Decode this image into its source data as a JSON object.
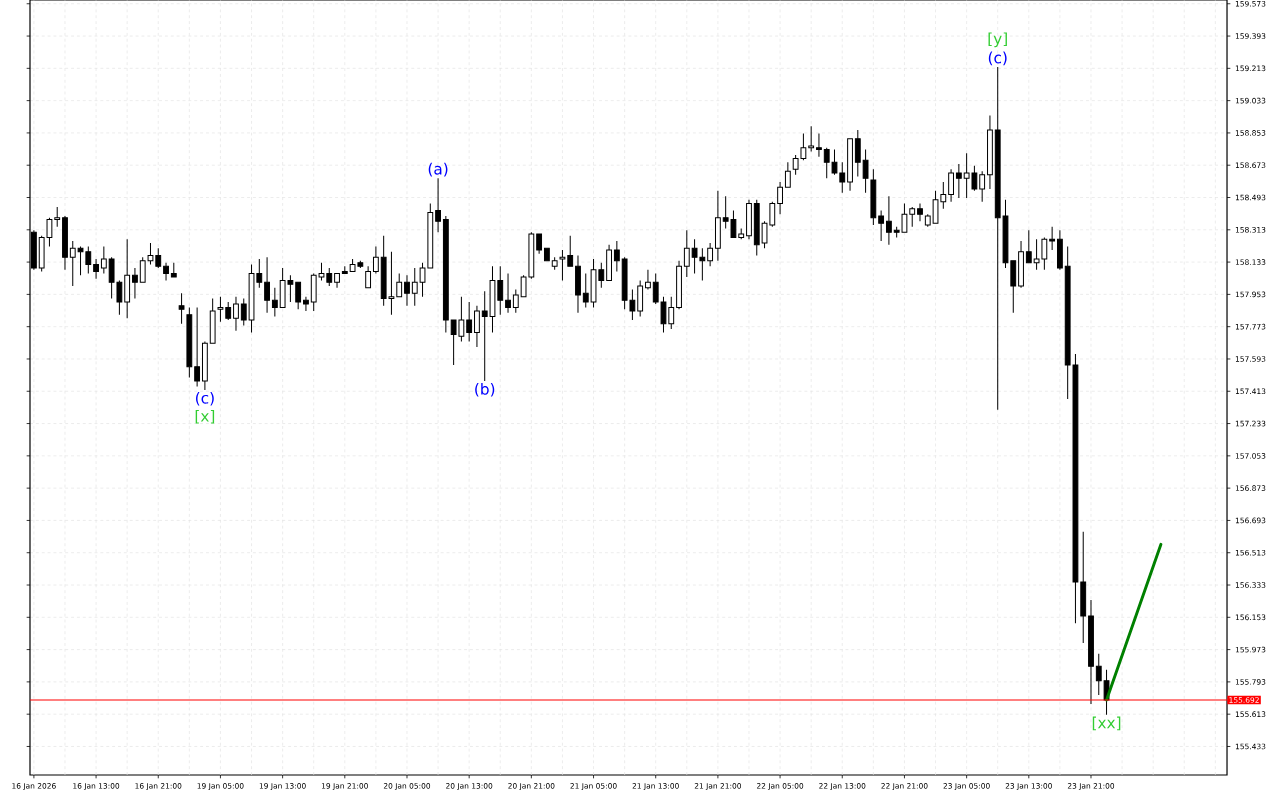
{
  "chart_data": {
    "type": "candlestick",
    "categories": [
      "16 Jan 2026",
      null,
      null,
      null,
      null,
      null,
      null,
      null,
      "16 Jan 13:00",
      null,
      null,
      null,
      null,
      null,
      null,
      null,
      "16 Jan 21:00",
      null,
      null,
      null,
      null,
      null,
      null,
      null,
      "19 Jan 05:00",
      null,
      null,
      null,
      null,
      null,
      null,
      null,
      "19 Jan 13:00",
      null,
      null,
      null,
      null,
      null,
      null,
      null,
      "19 Jan 21:00",
      null,
      null,
      null,
      null,
      null,
      null,
      null,
      "20 Jan 05:00",
      null,
      null,
      null,
      null,
      null,
      null,
      null,
      "20 Jan 13:00",
      null,
      null,
      null,
      null,
      null,
      null,
      null,
      "20 Jan 21:00",
      null,
      null,
      null,
      null,
      null,
      null,
      null,
      "21 Jan 05:00",
      null,
      null,
      null,
      null,
      null,
      null,
      null,
      "21 Jan 13:00",
      null,
      null,
      null,
      null,
      null,
      null,
      null,
      "21 Jan 21:00",
      null,
      null,
      null,
      null,
      null,
      null,
      null,
      "22 Jan 05:00",
      null,
      null,
      null,
      null,
      null,
      null,
      null,
      "22 Jan 13:00",
      null,
      null,
      null,
      null,
      null,
      null,
      null,
      "22 Jan 21:00",
      null,
      null,
      null,
      null,
      null,
      null,
      null,
      "23 Jan 05:00",
      null,
      null,
      null,
      null,
      null,
      null,
      null,
      "23 Jan 13:00",
      null,
      null,
      null,
      null,
      null,
      null,
      null,
      "23 Jan 21:00",
      null,
      null,
      null,
      null,
      null,
      null,
      null,
      null,
      null,
      null,
      null,
      null,
      null,
      null,
      null,
      null,
      null
    ],
    "ohlc": [
      [
        158.3,
        158.31,
        158.09,
        158.1
      ],
      [
        158.1,
        158.28,
        158.08,
        158.27
      ],
      [
        158.27,
        158.38,
        158.22,
        158.37
      ],
      [
        158.37,
        158.44,
        158.33,
        158.38
      ],
      [
        158.38,
        158.39,
        158.09,
        158.16
      ],
      [
        158.16,
        158.25,
        158.0,
        158.21
      ],
      [
        158.21,
        158.22,
        158.06,
        158.19
      ],
      [
        158.19,
        158.22,
        158.07,
        158.12
      ],
      [
        158.12,
        158.15,
        158.04,
        158.08
      ],
      [
        158.1,
        158.22,
        158.07,
        158.15
      ],
      [
        158.15,
        158.16,
        157.93,
        158.02
      ],
      [
        158.02,
        158.03,
        157.84,
        157.91
      ],
      [
        157.91,
        158.26,
        157.82,
        158.06
      ],
      [
        158.06,
        158.1,
        157.93,
        158.02
      ],
      [
        158.02,
        158.16,
        158.02,
        158.14
      ],
      [
        158.14,
        158.24,
        158.12,
        158.17
      ],
      [
        158.17,
        158.21,
        158.1,
        158.11
      ],
      [
        158.11,
        158.13,
        158.03,
        158.07
      ],
      [
        158.07,
        158.13,
        158.05,
        158.05
      ],
      [
        157.89,
        157.96,
        157.79,
        157.87
      ],
      [
        157.84,
        157.88,
        157.49,
        157.55
      ],
      [
        157.55,
        157.88,
        157.44,
        157.47
      ],
      [
        157.47,
        157.69,
        157.42,
        157.68
      ],
      [
        157.68,
        157.93,
        157.68,
        157.86
      ],
      [
        157.87,
        157.94,
        157.8,
        157.88
      ],
      [
        157.88,
        157.91,
        157.81,
        157.82
      ],
      [
        157.82,
        157.94,
        157.75,
        157.9
      ],
      [
        157.9,
        157.93,
        157.78,
        157.81
      ],
      [
        157.81,
        158.12,
        157.74,
        158.07
      ],
      [
        158.07,
        158.15,
        157.99,
        158.02
      ],
      [
        158.02,
        158.16,
        157.85,
        157.92
      ],
      [
        157.92,
        157.99,
        157.83,
        157.88
      ],
      [
        157.88,
        158.1,
        157.88,
        158.03
      ],
      [
        158.03,
        158.06,
        157.91,
        158.01
      ],
      [
        158.02,
        158.02,
        157.87,
        157.91
      ],
      [
        157.92,
        157.94,
        157.86,
        157.9
      ],
      [
        157.91,
        158.07,
        157.86,
        158.06
      ],
      [
        158.05,
        158.13,
        158.03,
        158.07
      ],
      [
        158.07,
        158.1,
        158.0,
        158.02
      ],
      [
        158.02,
        158.07,
        157.99,
        158.07
      ],
      [
        158.08,
        158.11,
        158.07,
        158.07
      ],
      [
        158.08,
        158.15,
        158.08,
        158.12
      ],
      [
        158.13,
        158.14,
        158.1,
        158.11
      ],
      [
        157.99,
        158.11,
        157.99,
        158.08
      ],
      [
        158.08,
        158.22,
        158.07,
        158.16
      ],
      [
        158.16,
        158.28,
        157.89,
        157.93
      ],
      [
        157.93,
        158.19,
        157.84,
        157.94
      ],
      [
        157.94,
        158.07,
        157.94,
        158.02
      ],
      [
        158.02,
        158.06,
        157.89,
        157.96
      ],
      [
        157.96,
        158.1,
        157.89,
        158.02
      ],
      [
        158.02,
        158.13,
        157.94,
        158.1
      ],
      [
        158.1,
        158.46,
        158.1,
        158.41
      ],
      [
        158.42,
        158.6,
        158.3,
        158.36
      ],
      [
        158.37,
        158.39,
        157.74,
        157.81
      ],
      [
        157.81,
        157.81,
        157.56,
        157.73
      ],
      [
        157.72,
        157.94,
        157.69,
        157.81
      ],
      [
        157.81,
        157.91,
        157.69,
        157.74
      ],
      [
        157.74,
        157.89,
        157.66,
        157.86
      ],
      [
        157.86,
        157.97,
        157.47,
        157.83
      ],
      [
        157.83,
        158.11,
        157.74,
        158.03
      ],
      [
        158.03,
        158.11,
        157.84,
        157.92
      ],
      [
        157.92,
        158.07,
        157.85,
        157.88
      ],
      [
        157.88,
        157.98,
        157.85,
        157.95
      ],
      [
        157.94,
        158.06,
        157.94,
        158.05
      ],
      [
        158.05,
        158.3,
        158.04,
        158.29
      ],
      [
        158.29,
        158.29,
        158.18,
        158.2
      ],
      [
        158.21,
        158.21,
        158.14,
        158.14
      ],
      [
        158.11,
        158.16,
        158.09,
        158.14
      ],
      [
        158.15,
        158.2,
        158.03,
        158.16
      ],
      [
        158.17,
        158.28,
        158.11,
        158.11
      ],
      [
        158.11,
        158.17,
        157.85,
        157.95
      ],
      [
        157.96,
        158.07,
        157.88,
        157.91
      ],
      [
        157.91,
        158.15,
        157.88,
        158.09
      ],
      [
        158.09,
        158.13,
        157.99,
        158.03
      ],
      [
        158.03,
        158.23,
        158.03,
        158.2
      ],
      [
        158.2,
        158.25,
        158.08,
        158.14
      ],
      [
        158.15,
        158.16,
        157.87,
        157.92
      ],
      [
        157.92,
        157.98,
        157.81,
        157.86
      ],
      [
        157.86,
        158.03,
        157.83,
        158.0
      ],
      [
        157.99,
        158.09,
        157.98,
        158.02
      ],
      [
        158.02,
        158.07,
        157.9,
        157.91
      ],
      [
        157.91,
        157.94,
        157.74,
        157.79
      ],
      [
        157.79,
        157.94,
        157.76,
        157.88
      ],
      [
        157.88,
        158.14,
        157.87,
        158.11
      ],
      [
        158.11,
        158.31,
        158.05,
        158.21
      ],
      [
        158.21,
        158.26,
        158.07,
        158.16
      ],
      [
        158.16,
        158.21,
        158.03,
        158.14
      ],
      [
        158.14,
        158.24,
        158.11,
        158.21
      ],
      [
        158.21,
        158.53,
        158.14,
        158.38
      ],
      [
        158.38,
        158.5,
        158.32,
        158.36
      ],
      [
        158.37,
        158.42,
        158.27,
        158.27
      ],
      [
        158.27,
        158.32,
        158.26,
        158.29
      ],
      [
        158.28,
        158.48,
        158.26,
        158.46
      ],
      [
        158.46,
        158.48,
        158.17,
        158.23
      ],
      [
        158.24,
        158.36,
        158.21,
        158.35
      ],
      [
        158.34,
        158.47,
        158.33,
        158.46
      ],
      [
        158.46,
        158.58,
        158.4,
        158.55
      ],
      [
        158.55,
        158.69,
        158.55,
        158.64
      ],
      [
        158.65,
        158.73,
        158.62,
        158.71
      ],
      [
        158.71,
        158.85,
        158.7,
        158.77
      ],
      [
        158.77,
        158.89,
        158.75,
        158.78
      ],
      [
        158.77,
        158.85,
        158.72,
        158.76
      ],
      [
        158.76,
        158.77,
        158.6,
        158.69
      ],
      [
        158.69,
        158.76,
        158.62,
        158.63
      ],
      [
        158.63,
        158.69,
        158.52,
        158.58
      ],
      [
        158.58,
        158.82,
        158.53,
        158.82
      ],
      [
        158.82,
        158.87,
        158.61,
        158.69
      ],
      [
        158.7,
        158.76,
        158.52,
        158.6
      ],
      [
        158.59,
        158.65,
        158.34,
        158.38
      ],
      [
        158.39,
        158.42,
        158.25,
        158.35
      ],
      [
        158.36,
        158.5,
        158.23,
        158.3
      ],
      [
        158.31,
        158.33,
        158.27,
        158.3
      ],
      [
        158.3,
        158.46,
        158.3,
        158.4
      ],
      [
        158.4,
        158.44,
        158.33,
        158.43
      ],
      [
        158.43,
        158.46,
        158.36,
        158.4
      ],
      [
        158.34,
        158.4,
        158.33,
        158.39
      ],
      [
        158.35,
        158.53,
        158.35,
        158.48
      ],
      [
        158.47,
        158.58,
        158.43,
        158.51
      ],
      [
        158.51,
        158.65,
        158.47,
        158.63
      ],
      [
        158.63,
        158.68,
        158.49,
        158.6
      ],
      [
        158.6,
        158.74,
        158.49,
        158.63
      ],
      [
        158.63,
        158.67,
        158.53,
        158.54
      ],
      [
        158.54,
        158.64,
        158.47,
        158.62
      ],
      [
        158.62,
        158.95,
        158.54,
        158.87
      ],
      [
        158.87,
        159.22,
        157.31,
        158.38
      ],
      [
        158.39,
        158.48,
        158.1,
        158.13
      ],
      [
        158.14,
        158.14,
        157.85,
        158.0
      ],
      [
        158.0,
        158.25,
        157.99,
        158.19
      ],
      [
        158.19,
        158.31,
        158.13,
        158.13
      ],
      [
        158.13,
        158.26,
        158.09,
        158.15
      ],
      [
        158.15,
        158.27,
        158.09,
        158.26
      ],
      [
        158.26,
        158.33,
        158.2,
        158.25
      ],
      [
        158.26,
        158.31,
        158.09,
        158.1
      ],
      [
        158.11,
        158.22,
        157.37,
        157.56
      ],
      [
        157.56,
        157.62,
        156.12,
        156.35
      ],
      [
        156.35,
        156.63,
        156.01,
        156.16
      ],
      [
        156.16,
        156.25,
        155.67,
        155.88
      ],
      [
        155.88,
        155.95,
        155.72,
        155.8
      ],
      [
        155.8,
        155.86,
        155.61,
        155.692
      ],
      null,
      null,
      null,
      null,
      null,
      null,
      null,
      null,
      null,
      null,
      null,
      null,
      null,
      null,
      null
    ],
    "series": [
      {
        "type": "line",
        "color": "#008000",
        "values": [
          null,
          null,
          null,
          null,
          null,
          null,
          null,
          null,
          null,
          null,
          null,
          null,
          null,
          null,
          null,
          null,
          null,
          null,
          null,
          null,
          null,
          null,
          null,
          null,
          null,
          null,
          null,
          null,
          null,
          null,
          null,
          null,
          null,
          null,
          null,
          null,
          null,
          null,
          null,
          null,
          null,
          null,
          null,
          null,
          null,
          null,
          null,
          null,
          null,
          null,
          null,
          null,
          null,
          null,
          null,
          null,
          null,
          null,
          null,
          null,
          null,
          null,
          null,
          null,
          null,
          null,
          null,
          null,
          null,
          null,
          null,
          null,
          null,
          null,
          null,
          null,
          null,
          null,
          null,
          null,
          null,
          null,
          null,
          null,
          null,
          null,
          null,
          null,
          null,
          null,
          null,
          null,
          null,
          null,
          null,
          null,
          null,
          null,
          null,
          null,
          null,
          null,
          null,
          null,
          null,
          null,
          null,
          null,
          null,
          null,
          null,
          null,
          null,
          null,
          null,
          null,
          null,
          null,
          null,
          null,
          null,
          null,
          null,
          null,
          null,
          null,
          null,
          null,
          null,
          null,
          null,
          null,
          null,
          null,
          null,
          null,
          null,
          null,
          155.692,
          null,
          null,
          null,
          null,
          null,
          null,
          156.56,
          null,
          null,
          null,
          null,
          null,
          null,
          null,
          null
        ]
      }
    ],
    "ylim": [
      155.274,
      159.594
    ],
    "yticks": [
      155.433,
      155.613,
      155.793,
      155.973,
      156.153,
      156.333,
      156.513,
      156.693,
      156.873,
      157.053,
      157.233,
      157.413,
      157.593,
      157.773,
      157.953,
      158.133,
      158.313,
      158.493,
      158.673,
      158.853,
      159.033,
      159.213,
      159.393,
      159.573
    ],
    "grid": true,
    "ref_lines": [
      {
        "axis": "y",
        "value": 155.692,
        "label": "155.692",
        "color": "#ff0000"
      }
    ],
    "annotations": [
      {
        "text": "(c)",
        "y": 157.42
      },
      {
        "text": "[x]",
        "y": 157.42
      },
      {
        "text": "(a)",
        "y": 158.6
      },
      {
        "text": "(b)",
        "y": 157.47
      },
      {
        "text": "(c)",
        "y": 159.22
      },
      {
        "text": "[y]",
        "y": 159.22
      },
      {
        "text": "[xx]",
        "y": 155.61
      }
    ]
  }
}
